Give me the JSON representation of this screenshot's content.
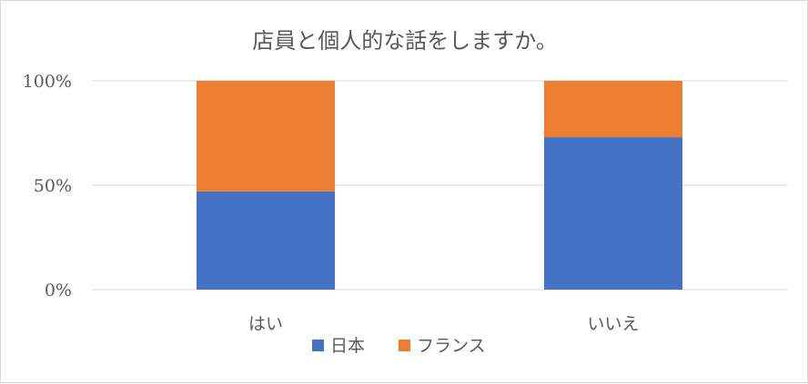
{
  "chart_data": {
    "type": "bar",
    "stacked": true,
    "percent": true,
    "title": "店員と個人的な話をしますか。",
    "categories": [
      "はい",
      "いいえ"
    ],
    "series": [
      {
        "name": "日本",
        "color": "#4472c4",
        "values": [
          47,
          73
        ]
      },
      {
        "name": "フランス",
        "color": "#ed7d31",
        "values": [
          53,
          27
        ]
      }
    ],
    "yticks": [
      "0%",
      "50%",
      "100%"
    ],
    "ylim": [
      0,
      100
    ],
    "grid": true,
    "legend_position": "bottom",
    "gridline_color": "#d9d9d9"
  }
}
